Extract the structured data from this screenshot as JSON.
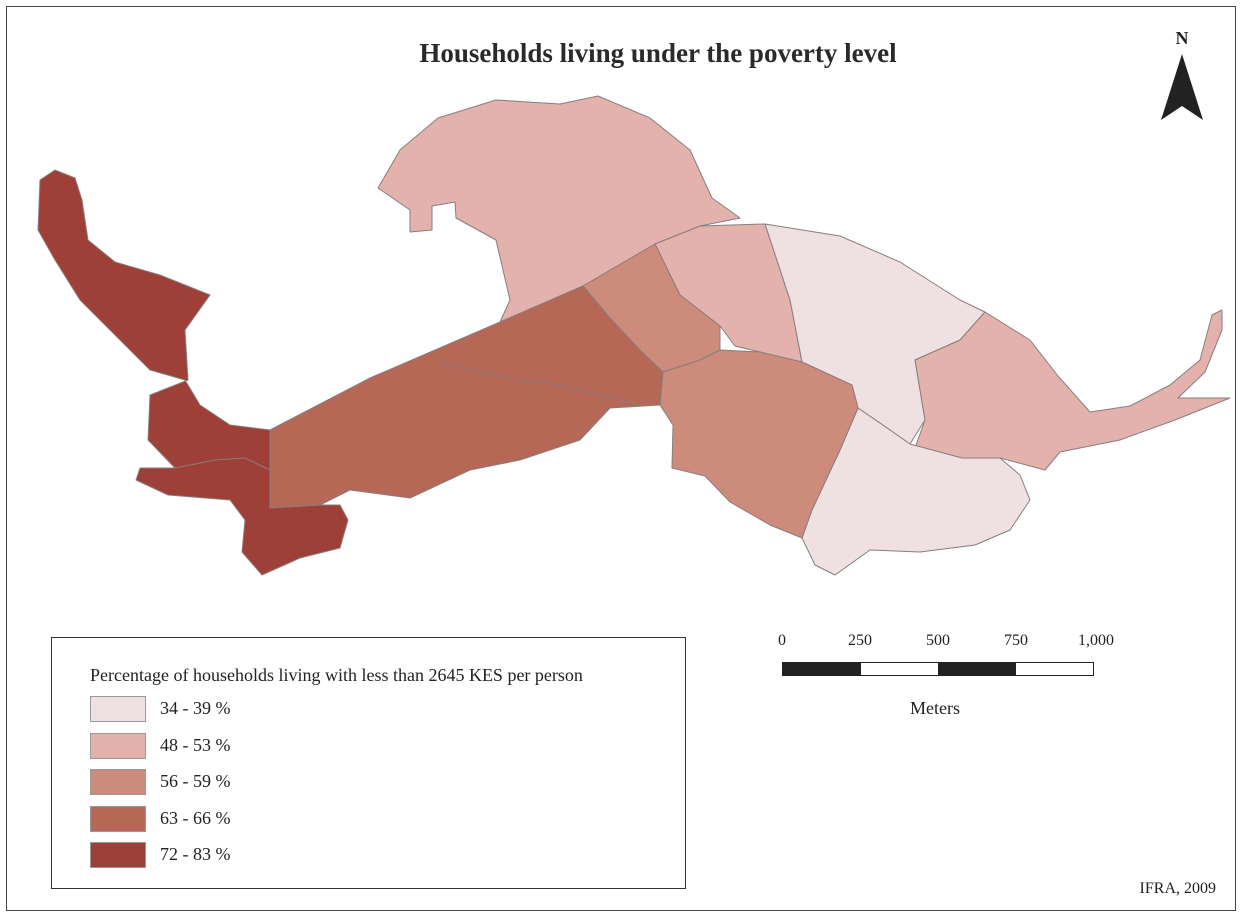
{
  "map": {
    "title": "Households living under the poverty level",
    "north_label": "N",
    "credit": "IFRA, 2009",
    "region_fill": {
      "class_1": "#efe0e1",
      "class_2": "#e3b2ac",
      "class_3": "#cd8b7c",
      "class_4": "#b66756",
      "class_5": "#9e3f38"
    }
  },
  "legend": {
    "title": "Percentage of households living with less than 2645 KES per person",
    "items": [
      {
        "label": "34 - 39 %",
        "color": "#efe0e1"
      },
      {
        "label": "48 - 53 %",
        "color": "#e3b2ac"
      },
      {
        "label": "56 - 59 %",
        "color": "#cd8b7c"
      },
      {
        "label": "63 - 66 %",
        "color": "#b66756"
      },
      {
        "label": "72 - 83 %",
        "color": "#9e3f38"
      }
    ]
  },
  "scale": {
    "ticks": [
      "0",
      "250",
      "500",
      "750",
      "1,000"
    ],
    "unit": "Meters",
    "segment_colors": [
      "#222222",
      "#ffffff",
      "#222222",
      "#ffffff"
    ]
  }
}
